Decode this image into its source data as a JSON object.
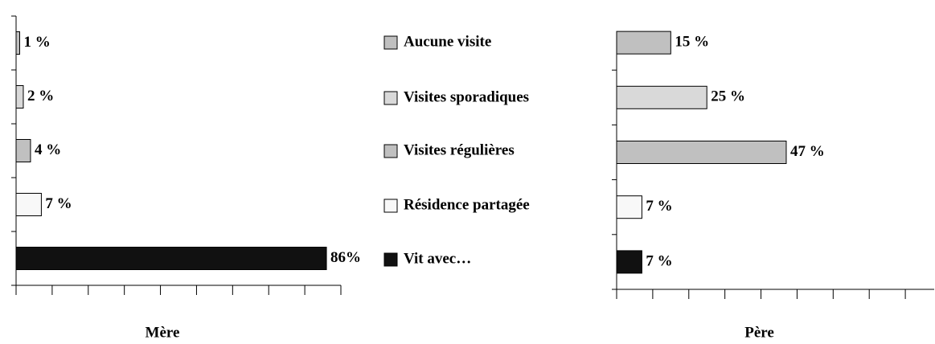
{
  "chart_data": [
    {
      "type": "bar",
      "title": "Mère",
      "categories": [
        "Aucune visite",
        "Visites sporadiques",
        "Visites régulières",
        "Résidence partagée",
        "Vit avec…"
      ],
      "colors": [
        "#c0c0c0",
        "#d9d9d9",
        "#c0c0c0",
        "#f8f8f8",
        "#111111"
      ],
      "values": [
        1,
        2,
        4,
        7,
        86
      ],
      "value_labels": [
        "1 %",
        "2 %",
        "4 %",
        "7 %",
        "86%"
      ],
      "xlim": [
        0,
        90
      ],
      "xticks": [
        0,
        10,
        20,
        30,
        40,
        50,
        60,
        70,
        80,
        90
      ]
    },
    {
      "type": "bar",
      "title": "Père",
      "values": [
        15,
        25,
        47,
        7,
        7
      ],
      "value_labels": [
        "15 %",
        "25 %",
        "47 %",
        "7 %",
        "7 %"
      ],
      "xlim": [
        0,
        88
      ],
      "xticks": [
        0,
        10,
        20,
        30,
        40,
        50,
        60,
        70,
        80
      ]
    }
  ]
}
